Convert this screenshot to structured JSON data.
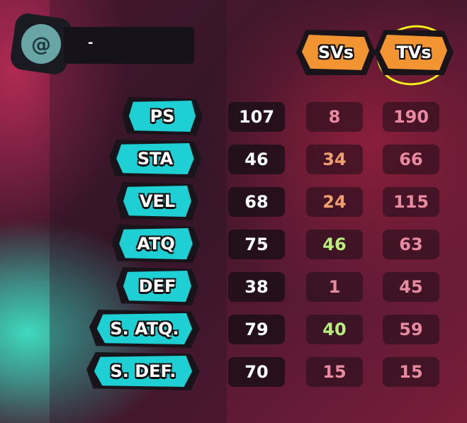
{
  "header": {
    "name": "-",
    "emblem_icon": "temtem-emblem-icon",
    "sv_label": "SVs",
    "tv_label": "TVs",
    "highlight_color": "#f3ef1a"
  },
  "colors": {
    "label_bg": "#1ed0d4",
    "header_bg": "#f39433",
    "low": "#e88aa0",
    "mid": "#f0a070",
    "high": "#b8f080"
  },
  "stats": [
    {
      "label": "PS",
      "base": "107",
      "sv": "8",
      "tv": "190",
      "sv_color": "#e88aa0",
      "tv_color": "#e88aa0"
    },
    {
      "label": "STA",
      "base": "46",
      "sv": "34",
      "tv": "66",
      "sv_color": "#f0a070",
      "tv_color": "#e88aa0"
    },
    {
      "label": "VEL",
      "base": "68",
      "sv": "24",
      "tv": "115",
      "sv_color": "#f0a070",
      "tv_color": "#e88aa0"
    },
    {
      "label": "ATQ",
      "base": "75",
      "sv": "46",
      "tv": "63",
      "sv_color": "#b8f080",
      "tv_color": "#e88aa0"
    },
    {
      "label": "DEF",
      "base": "38",
      "sv": "1",
      "tv": "45",
      "sv_color": "#e88aa0",
      "tv_color": "#e88aa0"
    },
    {
      "label": "S. ATQ.",
      "base": "79",
      "sv": "40",
      "tv": "59",
      "sv_color": "#b8f080",
      "tv_color": "#e88aa0"
    },
    {
      "label": "S. DEF.",
      "base": "70",
      "sv": "15",
      "tv": "15",
      "sv_color": "#e88aa0",
      "tv_color": "#e88aa0"
    }
  ]
}
